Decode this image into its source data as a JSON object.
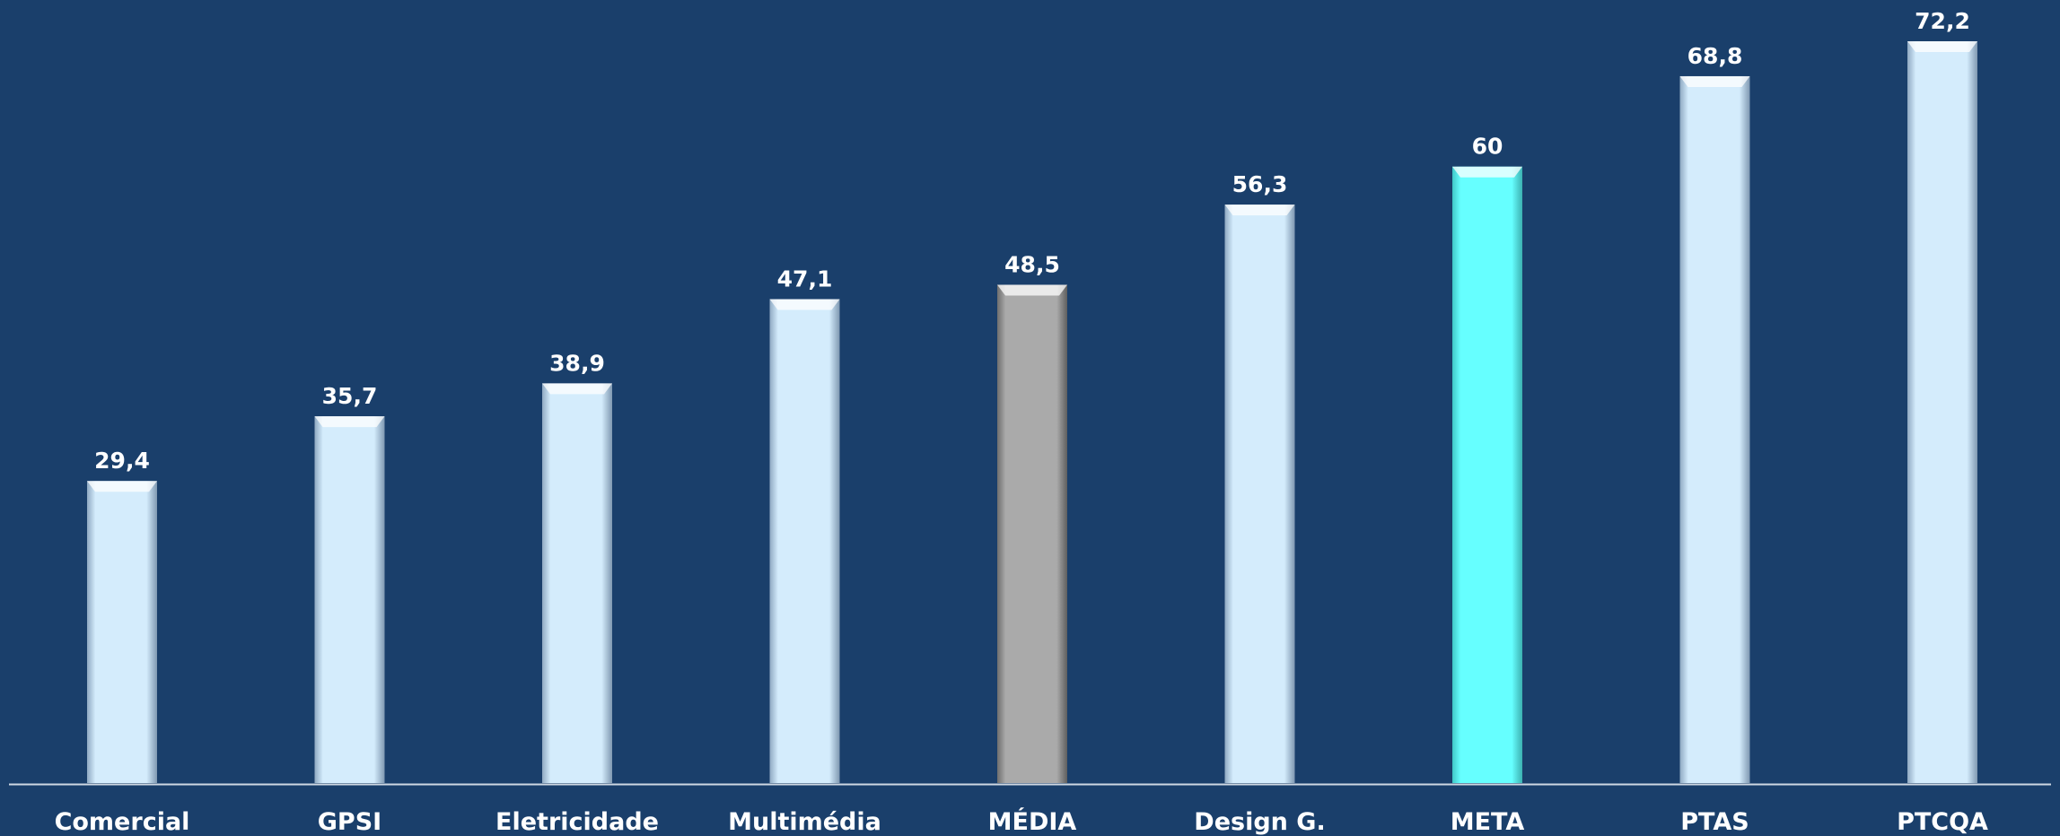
{
  "chart_data": {
    "type": "bar",
    "title": "",
    "xlabel": "",
    "ylabel": "",
    "categories": [
      "Comercial",
      "GPSI",
      "Eletricidade",
      "Multimédia",
      "MÉDIA",
      "Design G.",
      "META",
      "PTAS",
      "PTCQA"
    ],
    "values": [
      29.4,
      35.7,
      38.9,
      47.1,
      48.5,
      56.3,
      60,
      68.8,
      72.2
    ],
    "value_labels": [
      "29,4",
      "35,7",
      "38,9",
      "47,1",
      "48,5",
      "56,3",
      "60",
      "68,8",
      "72,2"
    ],
    "ylim": [
      0,
      72.2
    ],
    "grid": false,
    "legend": "none",
    "bar_kinds": [
      "normal",
      "normal",
      "normal",
      "normal",
      "average",
      "normal",
      "target",
      "normal",
      "normal"
    ],
    "colors": {
      "background": "#1a3f6b",
      "normal": "#d4ecfc",
      "average": "#a9a9a9",
      "target": "#66ffff",
      "axis": "#cfd8e3",
      "text": "#ffffff"
    }
  }
}
